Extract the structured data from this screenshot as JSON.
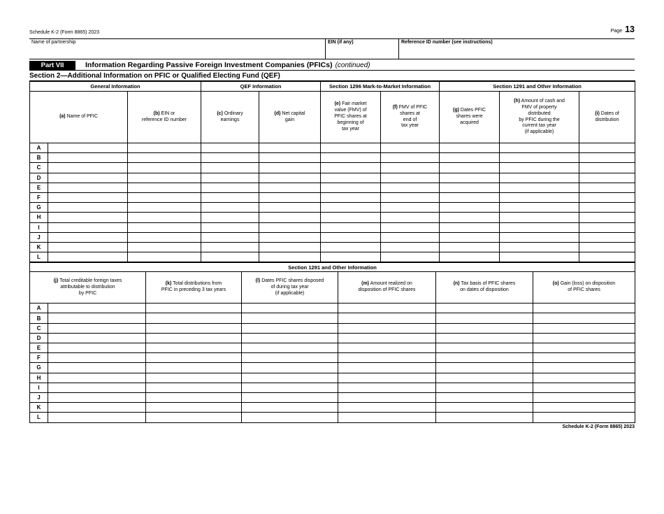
{
  "header": {
    "schedule_label": "Schedule K-2 (Form 8865) 2023",
    "page_label": "Page",
    "page_number": "13"
  },
  "identity": {
    "name_label": "Name of partnership",
    "name_value": "",
    "ein_label": "EIN (if any)",
    "ein_value": "",
    "reference_label": "Reference ID number (see instructions)",
    "reference_value": ""
  },
  "part_vii": {
    "part_label": "Part VII",
    "title": "Information Regarding Passive Foreign Investment Companies (PFICs)",
    "title_suffix": "(continued)",
    "section_title": "Section 2—Additional Information on PFIC or Qualified Electing Fund (QEF)"
  },
  "table1": {
    "group_headers": [
      {
        "label": "General Information",
        "span": 3
      },
      {
        "label": "QEF Information",
        "span": 2
      },
      {
        "label": "Section 1296 Mark-to-Market Information",
        "span": 2
      },
      {
        "label": "Section 1291 and Other Information",
        "span": 3
      }
    ],
    "columns": [
      {
        "prefix": "(a)",
        "label": "Name of PFIC"
      },
      {
        "prefix": "(b)",
        "label": "EIN or\nreference ID number"
      },
      {
        "prefix": "(c)",
        "label": "Ordinary\nearnings"
      },
      {
        "prefix": "(d)",
        "label": "Net capital\ngain"
      },
      {
        "prefix": "(e)",
        "label": "Fair market\nvalue (FMV) of\nPFIC shares at\nbeginning of\ntax year"
      },
      {
        "prefix": "(f)",
        "label": "FMV of PFIC\nshares at\nend of\ntax year"
      },
      {
        "prefix": "(g)",
        "label": "Dates PFIC\nshares were\nacquired"
      },
      {
        "prefix": "(h)",
        "label": "Amount of cash and\nFMV of property\ndistributed\nby PFIC during the\ncurrent tax year\n(if applicable)"
      },
      {
        "prefix": "(i)",
        "label": "Dates of\ndistribution"
      }
    ],
    "row_letters": [
      "A",
      "B",
      "C",
      "D",
      "E",
      "F",
      "G",
      "H",
      "I",
      "J",
      "K",
      "L"
    ],
    "cell_values": []
  },
  "table2": {
    "band_header": "Section 1291 and Other Information",
    "columns": [
      {
        "prefix": "(j)",
        "label": "Total creditable foreign taxes\nattributable to distribution\nby PFIC"
      },
      {
        "prefix": "(k)",
        "label": "Total distributions from\nPFIC in preceding 3 tax years"
      },
      {
        "prefix": "(l)",
        "label": "Dates PFIC shares disposed\nof during tax year\n(if applicable)"
      },
      {
        "prefix": "(m)",
        "label": "Amount realized on\ndisposition of PFIC shares"
      },
      {
        "prefix": "(n)",
        "label": "Tax basis of PFIC shares\non dates of disposition"
      },
      {
        "prefix": "(o)",
        "label": "Gain (loss) on disposition\nof PFIC shares"
      }
    ],
    "row_letters": [
      "A",
      "B",
      "C",
      "D",
      "E",
      "F",
      "G",
      "H",
      "I",
      "J",
      "K",
      "L"
    ],
    "cell_values": []
  },
  "footer": {
    "text": "Schedule K-2 (Form 8865) 2023"
  }
}
